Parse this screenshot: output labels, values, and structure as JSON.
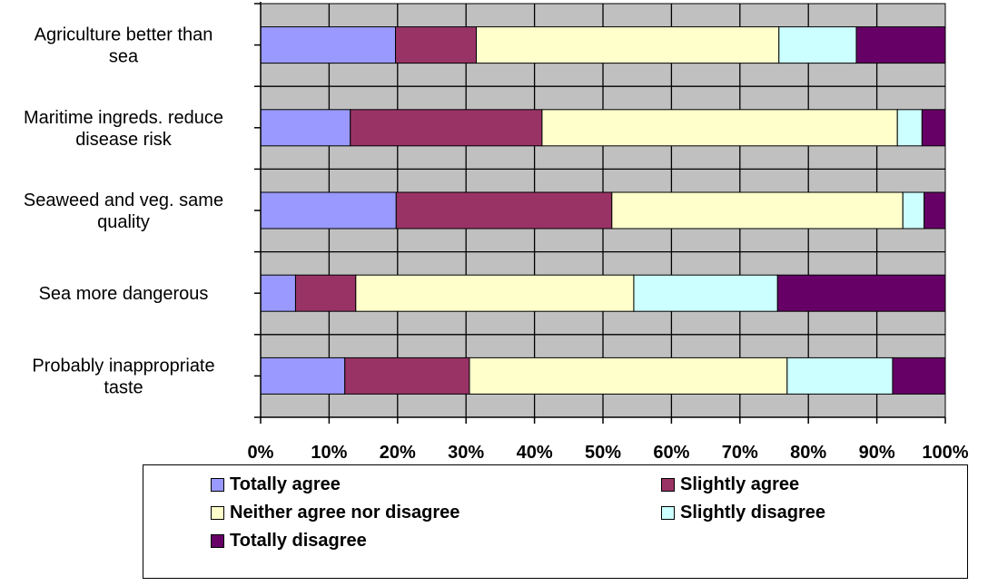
{
  "chart_data": {
    "type": "bar",
    "orientation": "horizontal",
    "stacked": "percent",
    "categories": [
      [
        "Agriculture better than",
        "sea"
      ],
      [
        "Maritime ingreds. reduce",
        "disease risk"
      ],
      [
        "Seaweed and veg. same",
        "quality"
      ],
      [
        "Sea more dangerous"
      ],
      [
        "Probably inappropriate",
        "taste"
      ]
    ],
    "series": [
      {
        "name": "Totally agree",
        "color": "#9999ff",
        "values": [
          19.7,
          13.1,
          19.8,
          5.1,
          12.3
        ]
      },
      {
        "name": "Slightly agree",
        "color": "#993366",
        "values": [
          11.8,
          28.0,
          31.5,
          8.8,
          18.2
        ]
      },
      {
        "name": "Neither agree nor disagree",
        "color": "#ffffcc",
        "values": [
          44.2,
          51.9,
          42.5,
          40.6,
          46.4
        ]
      },
      {
        "name": "Slightly disagree",
        "color": "#ccffff",
        "values": [
          11.3,
          3.6,
          3.1,
          21.0,
          15.4
        ]
      },
      {
        "name": "Totally disagree",
        "color": "#660066",
        "values": [
          13.0,
          3.4,
          3.1,
          24.5,
          7.7
        ]
      }
    ],
    "xticks": [
      "0%",
      "10%",
      "20%",
      "30%",
      "40%",
      "50%",
      "60%",
      "70%",
      "80%",
      "90%",
      "100%"
    ],
    "xlim": [
      0,
      100
    ],
    "grid": true,
    "plot_background": "#c0c0c0",
    "legend_position": "bottom"
  }
}
